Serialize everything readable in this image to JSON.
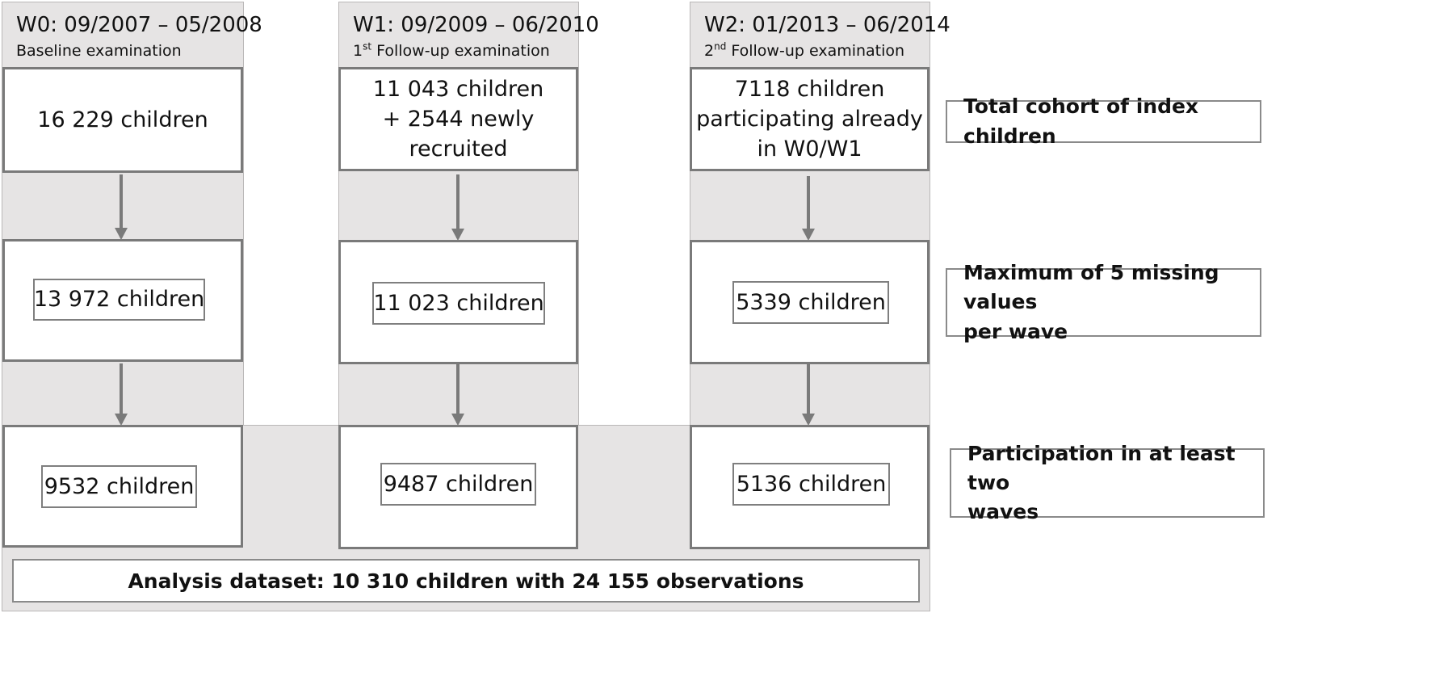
{
  "waves": [
    {
      "title": "W0: 09/2007 – 05/2008",
      "sub_prefix": "Baseline examination",
      "sub_sup": "",
      "sub_rest": "",
      "cohort_lines": [
        "16 229 children"
      ],
      "missing_count": "13 972 children",
      "participation_count": "9532 children"
    },
    {
      "title": "W1: 09/2009 – 06/2010",
      "sub_prefix": "1",
      "sub_sup": "st",
      "sub_rest": " Follow-up examination",
      "cohort_lines": [
        "11 043 children",
        "+  2544 newly",
        "recruited"
      ],
      "missing_count": "11 023 children",
      "participation_count": "9487 children"
    },
    {
      "title": "W2: 01/2013 – 06/2014",
      "sub_prefix": "2",
      "sub_sup": "nd",
      "sub_rest": " Follow-up examination",
      "cohort_lines": [
        "7118 children",
        "participating already",
        "in W0/W1"
      ],
      "missing_count": "5339 children",
      "participation_count": "5136 children"
    }
  ],
  "criteria": {
    "total_cohort": "Total cohort of index children",
    "missing_values": [
      "Maximum of 5 missing values",
      "per wave"
    ],
    "participation": [
      "Participation in at least two",
      "waves"
    ]
  },
  "analysis_dataset": "Analysis dataset: 10 310 children with 24 155 observations"
}
